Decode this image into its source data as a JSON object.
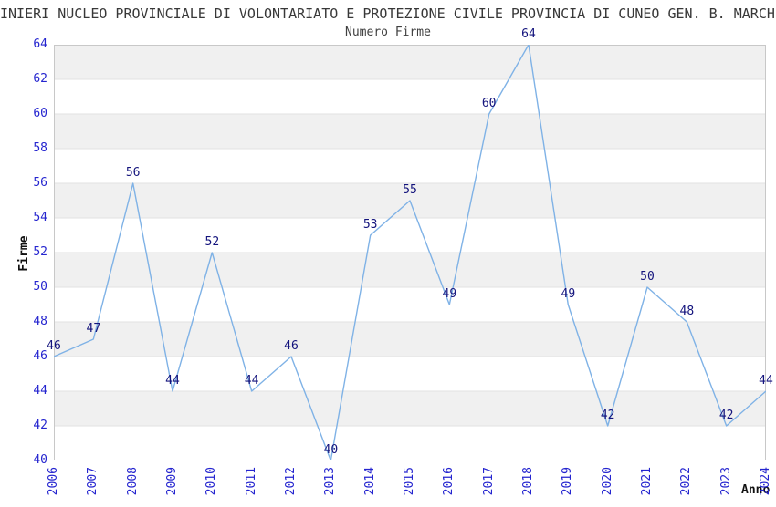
{
  "header": {
    "title_visible": "INIERI NUCLEO PROVINCIALE DI VOLONTARIATO E PROTEZIONE CIVILE PROVINCIA DI CUNEO GEN. B. MARCHI",
    "subtitle": "Numero Firme"
  },
  "chart_data": {
    "type": "line",
    "title": "Numero Firme",
    "xlabel": "Anno",
    "ylabel": "Firme",
    "categories": [
      "2006",
      "2007",
      "2008",
      "2009",
      "2010",
      "2011",
      "2012",
      "2013",
      "2014",
      "2015",
      "2016",
      "2017",
      "2018",
      "2019",
      "2020",
      "2021",
      "2022",
      "2023",
      "2024"
    ],
    "values": [
      46,
      47,
      56,
      44,
      52,
      44,
      46,
      40,
      53,
      55,
      49,
      60,
      64,
      49,
      42,
      50,
      48,
      42,
      44
    ],
    "ylim": [
      40,
      64
    ],
    "yticks": [
      40,
      42,
      44,
      46,
      48,
      50,
      52,
      54,
      56,
      58,
      60,
      62,
      64
    ],
    "ytick_step": 2,
    "grid": "horizontal-alternating-bands",
    "legend": "none",
    "point_labels": true
  },
  "colors": {
    "line": "#7FB2E6",
    "tick_label": "#2525CF",
    "data_label": "#14147D",
    "band_gray": "#F0F0F0",
    "band_white": "#FFFFFF",
    "gridline": "#E2E2E2",
    "plot_border": "#C8C8C8",
    "title_text": "#383838",
    "subtitle_text": "#404040"
  }
}
